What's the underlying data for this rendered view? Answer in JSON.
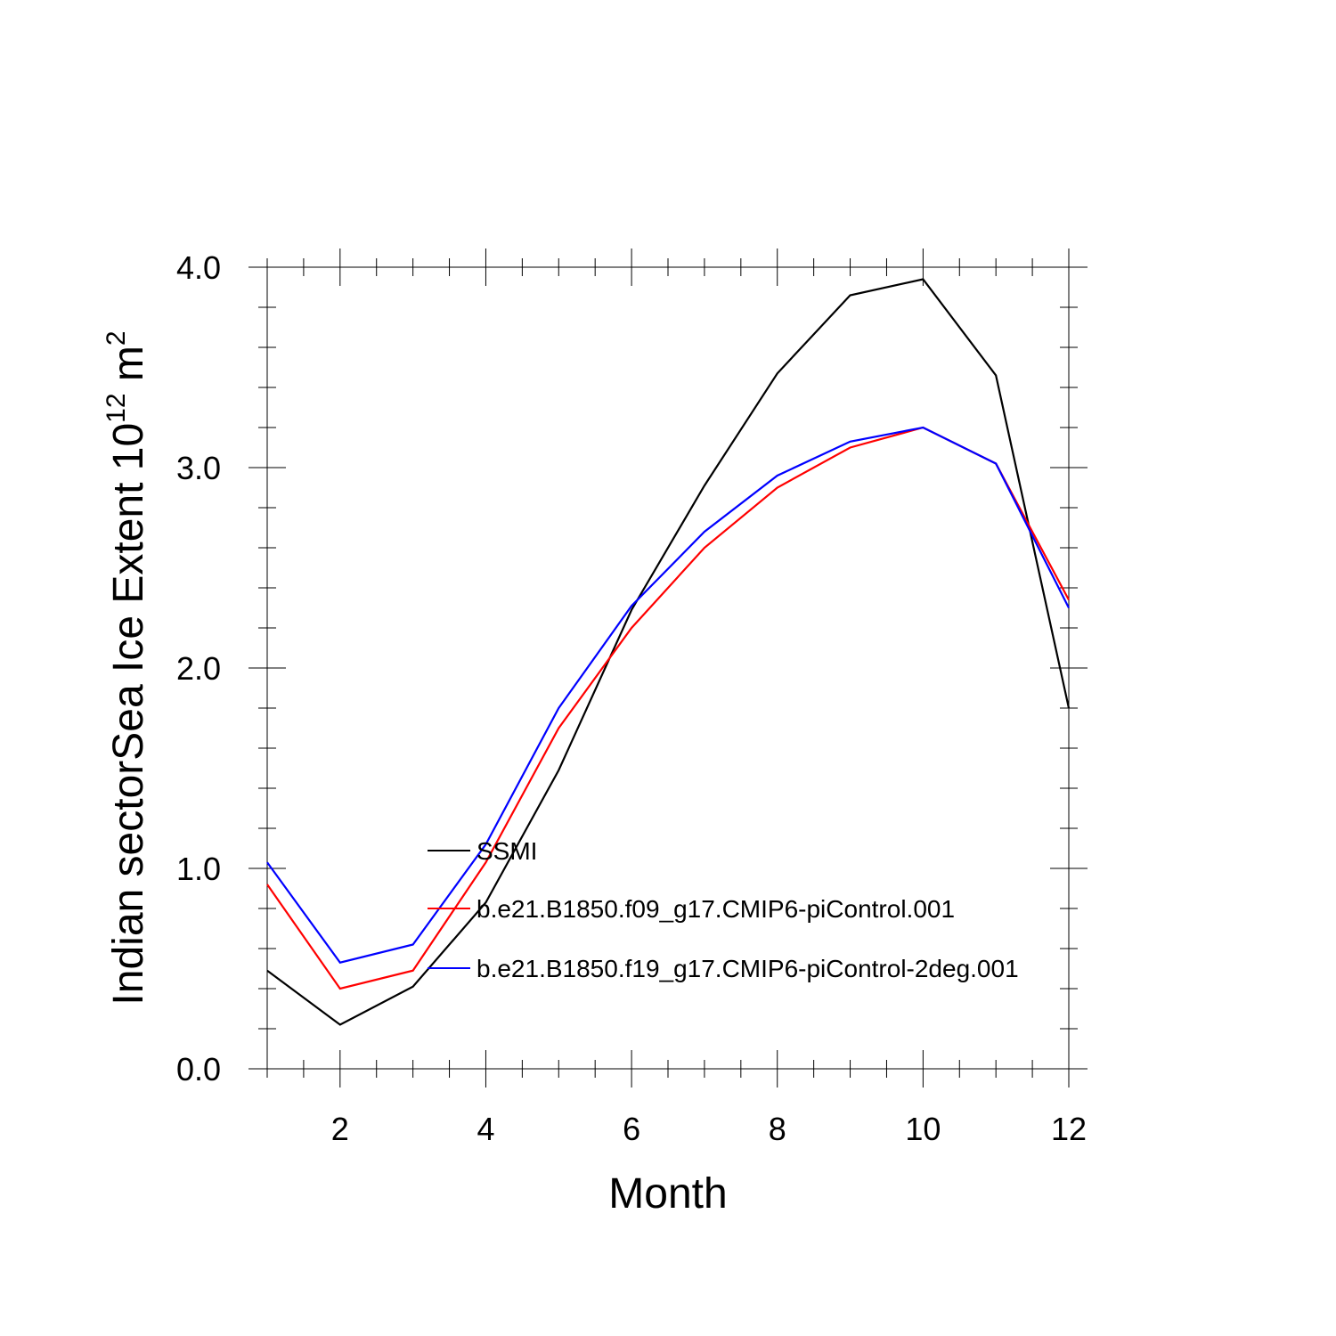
{
  "chart_data": {
    "type": "line",
    "title": "",
    "xlabel": "Month",
    "ylabel_main": "Indian sectorSea Ice Extent 10",
    "ylabel_exp": "12",
    "ylabel_unit": " m",
    "ylabel_unit_exp": "2",
    "xlim": [
      1,
      12
    ],
    "ylim": [
      0,
      4
    ],
    "x_ticks": [
      2,
      4,
      6,
      8,
      10,
      12
    ],
    "x_tick_labels": [
      "2",
      "4",
      "6",
      "8",
      "10",
      "12"
    ],
    "y_ticks": [
      0,
      1,
      2,
      3,
      4
    ],
    "y_tick_labels": [
      "0.0",
      "1.0",
      "2.0",
      "3.0",
      "4.0"
    ],
    "x": [
      1,
      2,
      3,
      4,
      5,
      6,
      7,
      8,
      9,
      10,
      11,
      12
    ],
    "series": [
      {
        "name": "SSMI",
        "color": "#000000",
        "values": [
          0.49,
          0.22,
          0.41,
          0.83,
          1.49,
          2.29,
          2.91,
          3.47,
          3.86,
          3.94,
          3.46,
          1.8
        ]
      },
      {
        "name": "b.e21.B1850.f09_g17.CMIP6-piControl.001",
        "color": "#ff0000",
        "values": [
          0.92,
          0.4,
          0.49,
          1.03,
          1.7,
          2.2,
          2.6,
          2.9,
          3.1,
          3.2,
          3.02,
          2.34
        ]
      },
      {
        "name": "b.e21.B1850.f19_g17.CMIP6-piControl-2deg.001",
        "color": "#0000ff",
        "values": [
          1.03,
          0.53,
          0.62,
          1.12,
          1.8,
          2.31,
          2.68,
          2.96,
          3.13,
          3.2,
          3.02,
          2.3
        ]
      }
    ],
    "legend_position": "inside-center-left"
  }
}
